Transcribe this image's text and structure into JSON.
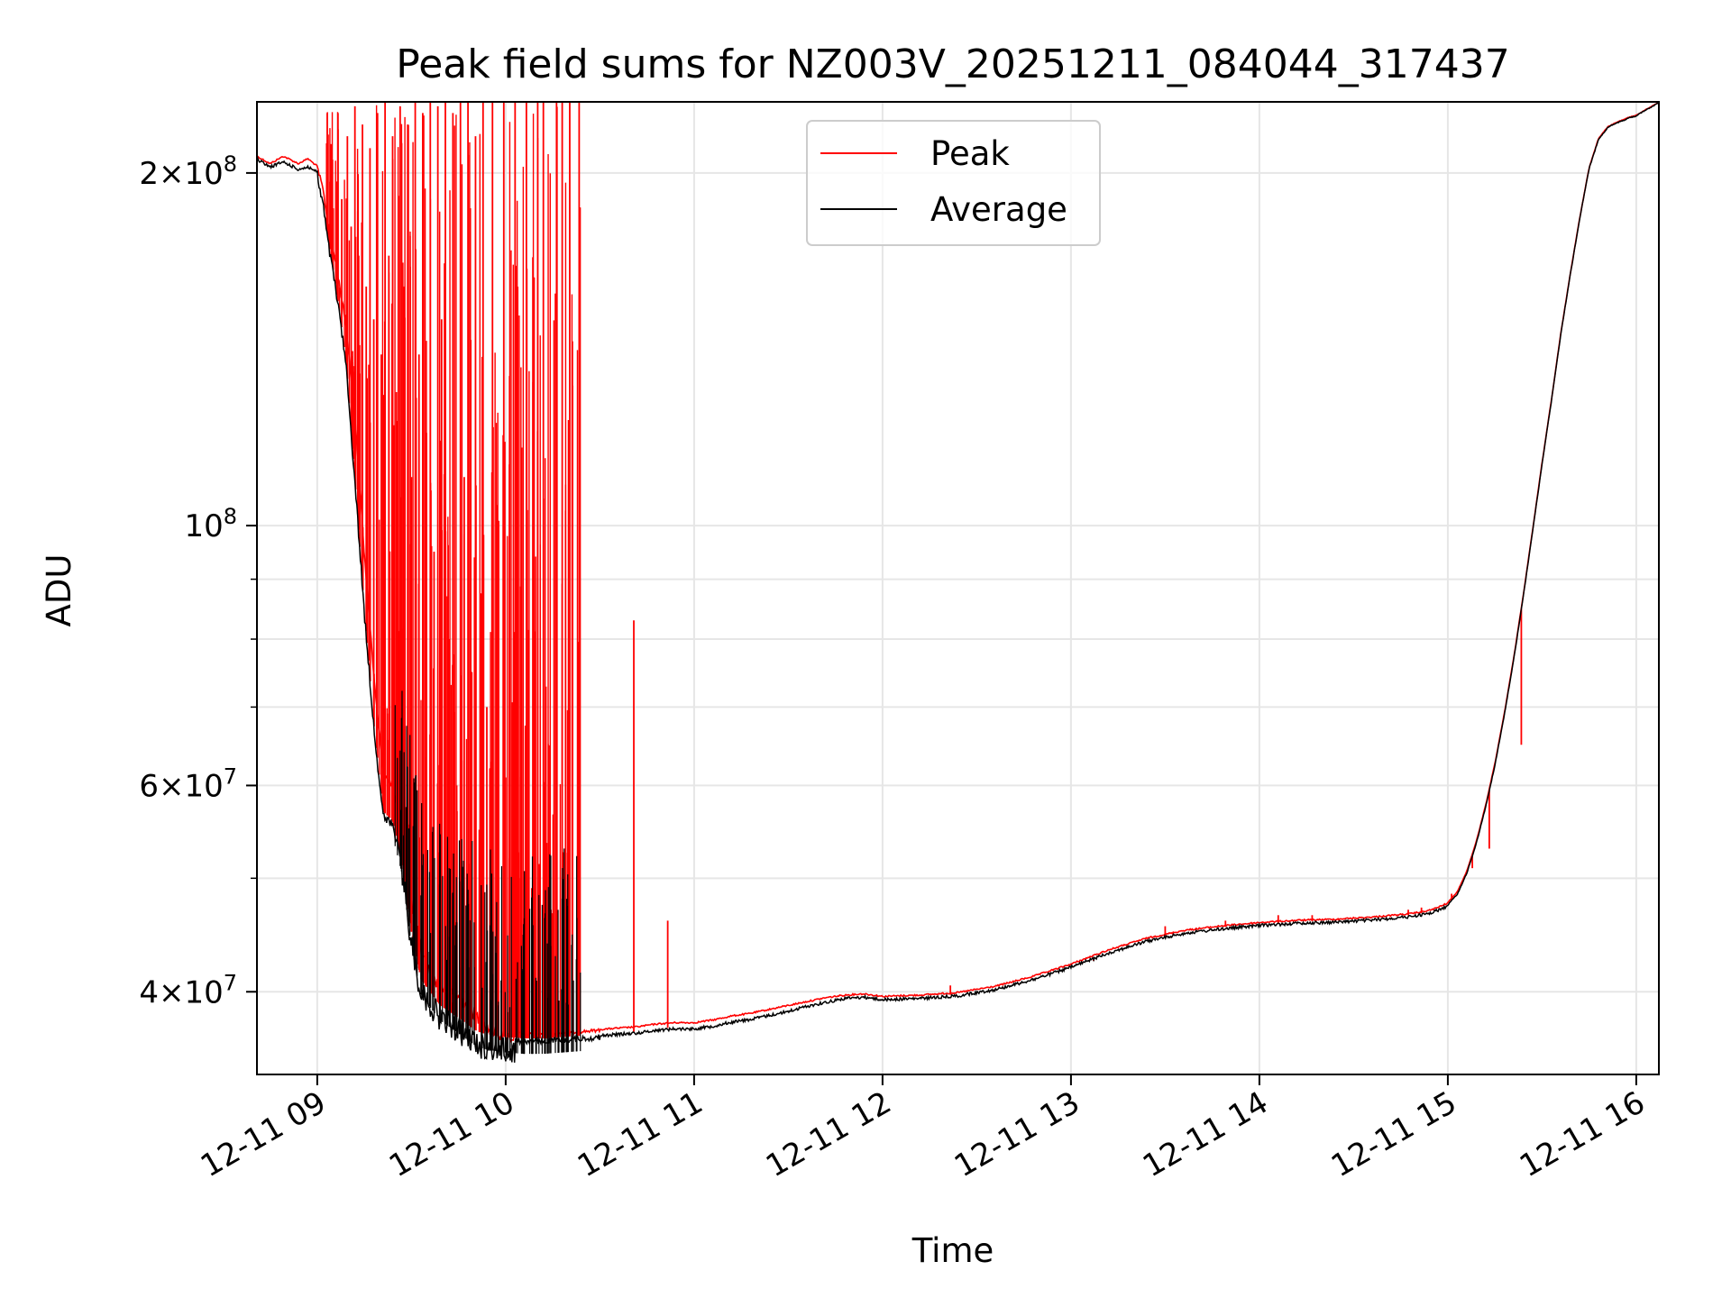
{
  "chart_data": {
    "type": "line",
    "title": "Peak field sums for NZ003V_20251211_084044_317437",
    "xlabel": "Time",
    "ylabel": "ADU",
    "yscale": "log",
    "ylim": [
      34000000,
      230000000
    ],
    "xlim": [
      8.68,
      16.12
    ],
    "grid": true,
    "legend_position": "top-center",
    "x_ticks": [
      {
        "value": 9,
        "label": "12-11 09"
      },
      {
        "value": 10,
        "label": "12-11 10"
      },
      {
        "value": 11,
        "label": "12-11 11"
      },
      {
        "value": 12,
        "label": "12-11 12"
      },
      {
        "value": 13,
        "label": "12-11 13"
      },
      {
        "value": 14,
        "label": "12-11 14"
      },
      {
        "value": 15,
        "label": "12-11 15"
      },
      {
        "value": 16,
        "label": "12-11 16"
      }
    ],
    "y_major_ticks": [
      {
        "value": 40000000,
        "mantissa": "4",
        "exponent": "7",
        "label": "4 × 10^7"
      },
      {
        "value": 60000000,
        "mantissa": "6",
        "exponent": "7",
        "label": "6 × 10^7"
      },
      {
        "value": 100000000,
        "mantissa": "",
        "exponent": "8",
        "label": "10^8"
      },
      {
        "value": 200000000,
        "mantissa": "2",
        "exponent": "8",
        "label": "2 × 10^8"
      }
    ],
    "y_minor_ticks": [
      50000000,
      70000000,
      80000000,
      90000000
    ],
    "series": [
      {
        "name": "Average",
        "color": "#000000",
        "x": [
          8.68,
          8.75,
          8.82,
          8.9,
          8.95,
          9.0,
          9.03,
          9.06,
          9.1,
          9.15,
          9.2,
          9.25,
          9.3,
          9.35,
          9.4,
          9.45,
          9.5,
          9.55,
          9.6,
          9.65,
          9.7,
          9.75,
          9.8,
          9.85,
          9.9,
          9.95,
          10.0,
          10.1,
          10.2,
          10.3,
          10.4,
          10.5,
          10.6,
          10.7,
          10.8,
          10.9,
          11.0,
          11.1,
          11.2,
          11.3,
          11.4,
          11.5,
          11.6,
          11.7,
          11.8,
          11.9,
          12.0,
          12.2,
          12.4,
          12.6,
          12.8,
          13.0,
          13.2,
          13.4,
          13.6,
          13.8,
          14.0,
          14.2,
          14.4,
          14.6,
          14.8,
          14.9,
          14.95,
          15.0,
          15.05,
          15.1,
          15.15,
          15.2,
          15.25,
          15.3,
          15.35,
          15.4,
          15.45,
          15.5,
          15.55,
          15.6,
          15.65,
          15.7,
          15.75,
          15.8,
          15.85,
          15.9,
          15.93,
          15.96,
          16.0,
          16.12
        ],
        "values": [
          206000000,
          203000000,
          205000000,
          202000000,
          203000000,
          201000000,
          190000000,
          175000000,
          160000000,
          140000000,
          110000000,
          85000000,
          68000000,
          57000000,
          56000000,
          52000000,
          45000000,
          41000000,
          40000000,
          39000000,
          38500000,
          38000000,
          37500000,
          37000000,
          36800000,
          36700000,
          36600000,
          36500000,
          36500000,
          36600000,
          36700000,
          36800000,
          36900000,
          37000000,
          37200000,
          37300000,
          37300000,
          37500000,
          37800000,
          38000000,
          38300000,
          38600000,
          39000000,
          39300000,
          39600000,
          39700000,
          39500000,
          39600000,
          39800000,
          40300000,
          41100000,
          42100000,
          43300000,
          44300000,
          45000000,
          45400000,
          45700000,
          45900000,
          46000000,
          46200000,
          46500000,
          46800000,
          47100000,
          47500000,
          48500000,
          50500000,
          53500000,
          57500000,
          62500000,
          69000000,
          77000000,
          87000000,
          99000000,
          113000000,
          128000000,
          146000000,
          164000000,
          183000000,
          202000000,
          214000000,
          219000000,
          221000000,
          222000000,
          223000000,
          224000000,
          230000000
        ]
      },
      {
        "name": "Peak",
        "color": "#ff0000",
        "x": [
          8.68,
          8.75,
          8.82,
          8.9,
          8.95,
          9.0,
          9.03,
          9.06,
          9.1,
          9.15,
          9.2,
          9.25,
          9.3,
          9.35,
          9.4,
          9.45,
          9.5,
          9.55,
          9.6,
          9.65,
          9.7,
          9.75,
          9.8,
          9.85,
          9.9,
          9.95,
          10.0,
          10.1,
          10.2,
          10.3,
          10.4,
          10.5,
          10.6,
          10.7,
          10.8,
          10.9,
          11.0,
          11.1,
          11.2,
          11.3,
          11.4,
          11.5,
          11.6,
          11.7,
          11.8,
          11.9,
          12.0,
          12.2,
          12.4,
          12.6,
          12.8,
          13.0,
          13.2,
          13.4,
          13.6,
          13.8,
          14.0,
          14.2,
          14.4,
          14.6,
          14.8,
          14.9,
          14.95,
          15.0,
          15.05,
          15.1,
          15.15,
          15.2,
          15.25,
          15.3,
          15.35,
          15.4,
          15.45,
          15.5,
          15.55,
          15.6,
          15.65,
          15.7,
          15.75,
          15.8,
          15.85,
          15.9,
          15.93,
          15.96,
          16.0,
          16.12
        ],
        "values": [
          207000000,
          204000000,
          207000000,
          204000000,
          206000000,
          203000000,
          195000000,
          180000000,
          168000000,
          150000000,
          125000000,
          95000000,
          75000000,
          62000000,
          60000000,
          56000000,
          48000000,
          44000000,
          42000000,
          41000000,
          40500000,
          40000000,
          39500000,
          38500000,
          37800000,
          37400000,
          37100000,
          36900000,
          36900000,
          37000000,
          37100000,
          37200000,
          37300000,
          37400000,
          37600000,
          37700000,
          37700000,
          37900000,
          38200000,
          38400000,
          38700000,
          39000000,
          39300000,
          39600000,
          39800000,
          39900000,
          39700000,
          39800000,
          40000000,
          40500000,
          41300000,
          42300000,
          43500000,
          44500000,
          45200000,
          45600000,
          45900000,
          46100000,
          46200000,
          46400000,
          46700000,
          47000000,
          47300000,
          47700000,
          48700000,
          50700000,
          53700000,
          57700000,
          62700000,
          69200000,
          77200000,
          87200000,
          99200000,
          113200000,
          128200000,
          146200000,
          164200000,
          183200000,
          202200000,
          214200000,
          219200000,
          221200000,
          222200000,
          223200000,
          224200000,
          230000000
        ],
        "spikes": [
          [
            9.05,
            212000000
          ],
          [
            9.08,
            200000000
          ],
          [
            9.11,
            225000000
          ],
          [
            9.13,
            190000000
          ],
          [
            9.16,
            215000000
          ],
          [
            9.18,
            180000000
          ],
          [
            9.2,
            228000000
          ],
          [
            9.22,
            170000000
          ],
          [
            9.24,
            220000000
          ],
          [
            9.26,
            160000000
          ],
          [
            9.28,
            210000000
          ],
          [
            9.3,
            150000000
          ],
          [
            9.32,
            225000000
          ],
          [
            9.34,
            140000000
          ],
          [
            9.36,
            230000000
          ],
          [
            9.38,
            170000000
          ],
          [
            9.4,
            215000000
          ],
          [
            9.42,
            130000000
          ],
          [
            9.44,
            228000000
          ],
          [
            9.46,
            160000000
          ],
          [
            9.48,
            220000000
          ],
          [
            9.5,
            110000000
          ],
          [
            9.52,
            230000000
          ],
          [
            9.54,
            140000000
          ],
          [
            9.56,
            225000000
          ],
          [
            9.58,
            120000000
          ],
          [
            9.6,
            230000000
          ],
          [
            9.62,
            95000000
          ],
          [
            9.64,
            228000000
          ],
          [
            9.66,
            150000000
          ],
          [
            9.68,
            230000000
          ],
          [
            9.7,
            80000000
          ],
          [
            9.72,
            225000000
          ],
          [
            9.74,
            60000000
          ],
          [
            9.76,
            230000000
          ],
          [
            9.78,
            110000000
          ],
          [
            9.8,
            230000000
          ],
          [
            9.82,
            75000000
          ],
          [
            9.84,
            215000000
          ],
          [
            9.86,
            55000000
          ],
          [
            9.88,
            230000000
          ],
          [
            9.9,
            70000000
          ],
          [
            9.93,
            230000000
          ],
          [
            9.96,
            60000000
          ],
          [
            9.99,
            230000000
          ],
          [
            10.02,
            52000000
          ],
          [
            10.05,
            230000000
          ],
          [
            10.08,
            50000000
          ],
          [
            10.11,
            230000000
          ],
          [
            10.14,
            48000000
          ],
          [
            10.17,
            230000000
          ],
          [
            10.2,
            230000000
          ],
          [
            10.24,
            47000000
          ],
          [
            10.27,
            230000000
          ],
          [
            10.3,
            230000000
          ],
          [
            10.34,
            230000000
          ],
          [
            10.39,
            230000000
          ],
          [
            10.68,
            83000000
          ],
          [
            10.86,
            46000000
          ],
          [
            12.36,
            40500000
          ],
          [
            13.12,
            42500000
          ],
          [
            13.5,
            45500000
          ],
          [
            13.82,
            46000000
          ],
          [
            14.1,
            46500000
          ],
          [
            14.28,
            46500000
          ],
          [
            14.42,
            46200000
          ],
          [
            14.73,
            46500000
          ],
          [
            14.79,
            47000000
          ],
          [
            14.86,
            47200000
          ],
          [
            15.02,
            48500000
          ],
          [
            15.13,
            51000000
          ],
          [
            15.22,
            53000000
          ],
          [
            15.39,
            65000000
          ]
        ]
      }
    ]
  },
  "legend": {
    "items": [
      {
        "name": "Peak",
        "color": "#ff0000"
      },
      {
        "name": "Average",
        "color": "#000000"
      }
    ]
  }
}
